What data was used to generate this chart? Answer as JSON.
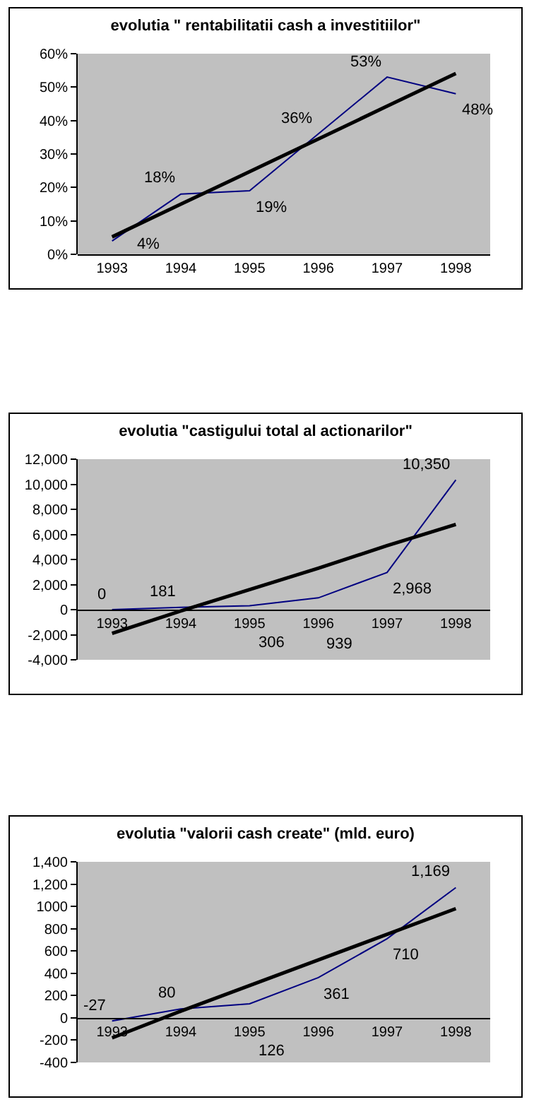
{
  "chart_data": [
    {
      "type": "line",
      "title": "evolutia \" rentabilitatii cash a investitiilor\"",
      "categories": [
        "1993",
        "1994",
        "1995",
        "1996",
        "1997",
        "1998"
      ],
      "series": [
        {
          "color": "#000080",
          "values": [
            4,
            18,
            19,
            36,
            53,
            48
          ],
          "value_labels": [
            "4%",
            "18%",
            "19%",
            "36%",
            "53%",
            "48%"
          ]
        },
        {
          "type": "line",
          "color": "#000000",
          "values": [
            5.2,
            15,
            24.7,
            34.5,
            44.3,
            54.1
          ]
        }
      ],
      "ylim": [
        0,
        60
      ],
      "yticks": [
        {
          "value": 0,
          "label": "0%"
        },
        {
          "value": 10,
          "label": "10%"
        },
        {
          "value": 20,
          "label": "20%"
        },
        {
          "value": 30,
          "label": "30%"
        },
        {
          "value": 40,
          "label": "40%"
        },
        {
          "value": 50,
          "label": "50%"
        },
        {
          "value": 60,
          "label": "60%"
        }
      ],
      "grid": false,
      "marker": "none"
    },
    {
      "type": "line",
      "title": "evolutia \"castigului total al actionarilor\"",
      "categories": [
        "1993",
        "1994",
        "1995",
        "1996",
        "1997",
        "1998"
      ],
      "series": [
        {
          "color": "#000080",
          "values": [
            0,
            181,
            306,
            939,
            2968,
            10350
          ],
          "value_labels": [
            "0",
            "181",
            "306",
            "939",
            "2,968",
            "10,350"
          ]
        },
        {
          "type": "line",
          "color": "#000000",
          "values": [
            -1900,
            -100,
            1600,
            3300,
            5100,
            6800
          ]
        }
      ],
      "ylim": [
        -4000,
        12000
      ],
      "yticks": [
        {
          "value": -4000,
          "label": "-4,000"
        },
        {
          "value": -2000,
          "label": "-2,000"
        },
        0,
        {
          "value": 2000,
          "label": "2,000"
        },
        {
          "value": 4000,
          "label": "4,000"
        },
        {
          "value": 6000,
          "label": "6,000"
        },
        {
          "value": 8000,
          "label": "8,000"
        },
        {
          "value": 10000,
          "label": "10,000"
        },
        {
          "value": 12000,
          "label": "12,000"
        }
      ],
      "grid": false,
      "marker": "none"
    },
    {
      "type": "line",
      "title": "evolutia \"valorii cash create\" (mld. euro)",
      "categories": [
        "1993",
        "1994",
        "1995",
        "1996",
        "1997",
        "1998"
      ],
      "series": [
        {
          "color": "#000080",
          "values": [
            -27,
            80,
            126,
            361,
            710,
            1169
          ],
          "value_labels": [
            "-27",
            "80",
            "126",
            "361",
            "710",
            "1,169"
          ]
        },
        {
          "type": "line",
          "color": "#000000",
          "values": [
            -180,
            60,
            290,
            520,
            750,
            980
          ]
        }
      ],
      "ylim": [
        -400,
        1400
      ],
      "yticks": [
        -400,
        -200,
        0,
        200,
        400,
        600,
        800,
        1000,
        {
          "value": 1200,
          "label": "1,200"
        },
        {
          "value": 1400,
          "label": "1,400"
        }
      ],
      "grid": false,
      "marker": "none"
    }
  ]
}
